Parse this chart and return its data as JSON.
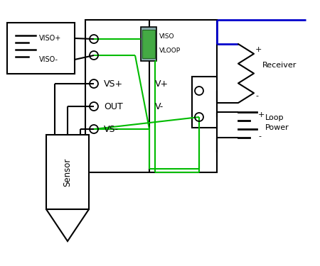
{
  "BLK": "#000000",
  "GRN": "#00bb00",
  "BLU": "#0000cc",
  "figsize": [
    4.5,
    3.75
  ],
  "dpi": 100,
  "labels": {
    "viso_plus": "VISO+",
    "viso_minus": "VISO-",
    "vs_plus": "VS+",
    "out": "OUT",
    "vs_minus": "VS-",
    "vplus": "V+",
    "vminus": "V-",
    "viso": "VISO",
    "vloop": "VLOOP",
    "receiver": "Receiver",
    "loop": "Loop",
    "power": "Power",
    "sensor": "Sensor",
    "plus": "+",
    "minus": "-"
  }
}
